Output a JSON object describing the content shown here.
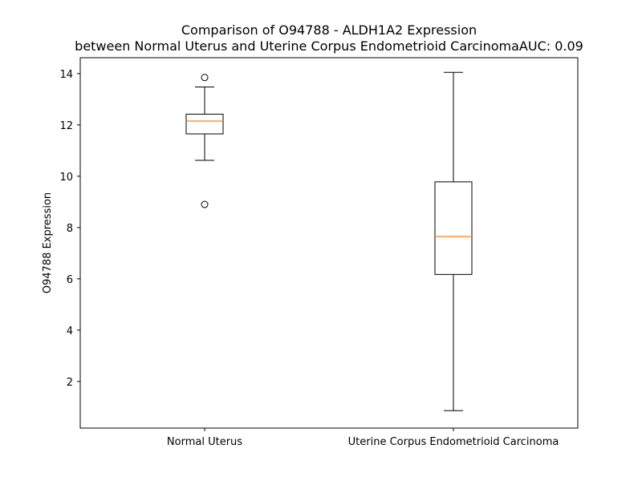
{
  "chart_data": {
    "type": "box",
    "title_line1": "Comparison of O94788 - ALDH1A2 Expression",
    "title_line2": "between Normal Uterus and Uterine Corpus Endometrioid CarcinomaAUC: 0.09",
    "xlabel": "",
    "ylabel": "O94788 Expression",
    "categories": [
      "Normal Uterus",
      "Uterine Corpus Endometrioid Carcinoma"
    ],
    "ylim": [
      0.18,
      14.62
    ],
    "yticks": [
      2,
      4,
      6,
      8,
      10,
      12,
      14
    ],
    "grid": false,
    "boxes": [
      {
        "category": "Normal Uterus",
        "whisker_low": 10.62,
        "q1": 11.65,
        "median": 12.15,
        "q3": 12.42,
        "whisker_high": 13.48,
        "outliers": [
          13.85,
          8.9
        ]
      },
      {
        "category": "Uterine Corpus Endometrioid Carcinoma",
        "whisker_low": 0.86,
        "q1": 6.17,
        "median": 7.65,
        "q3": 9.78,
        "whisker_high": 14.05,
        "outliers": []
      }
    ],
    "colors": {
      "box": "#000000",
      "median": "#ff7f0e",
      "axes": "#000000"
    }
  }
}
